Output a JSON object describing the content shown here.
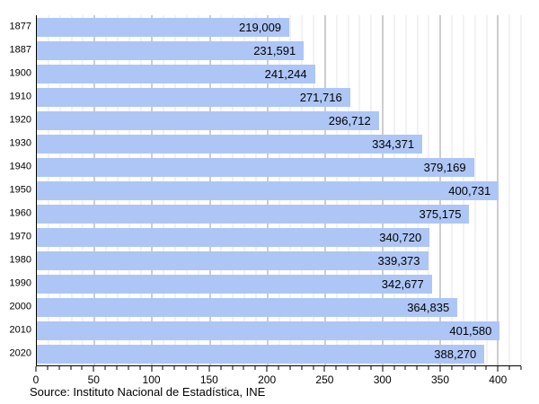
{
  "chart_data": {
    "type": "bar",
    "orientation": "horizontal",
    "title": "",
    "xlabel": "",
    "ylabel": "",
    "categories": [
      "1877",
      "1887",
      "1900",
      "1910",
      "1920",
      "1930",
      "1940",
      "1950",
      "1960",
      "1970",
      "1980",
      "1990",
      "2000",
      "2010",
      "2020"
    ],
    "values": [
      219009,
      231591,
      241244,
      271716,
      296712,
      334371,
      379169,
      400731,
      375175,
      340720,
      339373,
      342677,
      364835,
      401580,
      388270
    ],
    "value_labels": [
      "219,009",
      "231,591",
      "241,244",
      "271,716",
      "296,712",
      "334,371",
      "379,169",
      "400,731",
      "375,175",
      "340,720",
      "339,373",
      "342,677",
      "364,835",
      "401,580",
      "388,270"
    ],
    "x_axis": {
      "min": 0,
      "max": 420,
      "axis_values_in": "thousands",
      "major_tick_step": 50,
      "minor_tick_step": 10,
      "major_tick_labels": [
        "0",
        "50",
        "100",
        "150",
        "200",
        "250",
        "300",
        "350",
        "400"
      ]
    },
    "legend": "none",
    "grid": {
      "vertical_minor": true,
      "vertical_major": true,
      "horizontal": false
    },
    "colors": {
      "bar_fill": "#aec6f5",
      "major_grid": "#9b9b9b",
      "minor_grid": "#e4e4e4",
      "axis": "#000000",
      "text": "#000000"
    }
  },
  "footer": {
    "source_text": "Source: Instituto Nacional de Estadística, INE"
  }
}
